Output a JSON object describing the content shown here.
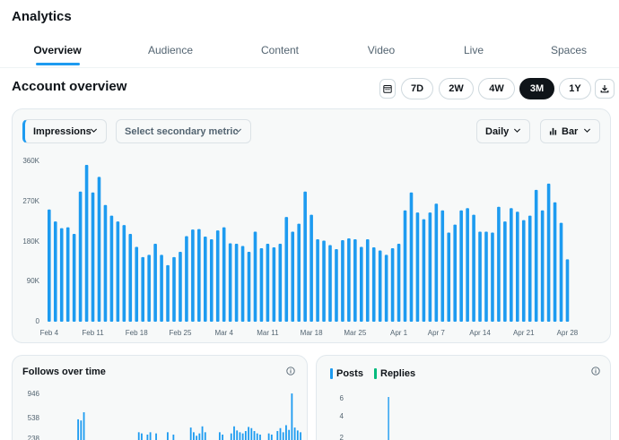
{
  "page": {
    "title": "Analytics"
  },
  "tabs": [
    {
      "label": "Overview",
      "active": true
    },
    {
      "label": "Audience",
      "active": false
    },
    {
      "label": "Content",
      "active": false
    },
    {
      "label": "Video",
      "active": false
    },
    {
      "label": "Live",
      "active": false
    },
    {
      "label": "Spaces",
      "active": false
    }
  ],
  "overview": {
    "title": "Account overview",
    "ranges": [
      "7D",
      "2W",
      "4W",
      "3M",
      "1Y"
    ],
    "selected_range": "3M",
    "calendar_icon": "calendar-icon",
    "download_icon": "download-icon"
  },
  "controls": {
    "primary_metric": "Impressions",
    "secondary_metric_placeholder": "Select secondary metric",
    "interval": "Daily",
    "chart_type_label": "Bar",
    "chart_type_icon": "bar-chart-icon"
  },
  "colors": {
    "accent": "#1d9bf0",
    "replies": "#00ba7c",
    "text": "#0f1419",
    "muted": "#536471"
  },
  "chart_data": [
    {
      "type": "bar",
      "ylim": [
        0,
        360000
      ],
      "yticks": [
        "0",
        "90K",
        "180K",
        "270K",
        "360K"
      ],
      "xticks": [
        "Feb 4",
        "Feb 11",
        "Feb 18",
        "Feb 25",
        "Mar 4",
        "Mar 11",
        "Mar 18",
        "Mar 25",
        "Apr 1",
        "Apr 7",
        "Apr 14",
        "Apr 21",
        "Apr 28"
      ],
      "values": [
        252000,
        225000,
        210000,
        212000,
        197000,
        292000,
        352000,
        290000,
        325000,
        262000,
        238000,
        225000,
        217000,
        197000,
        168000,
        145000,
        150000,
        175000,
        150000,
        127000,
        145000,
        157000,
        192000,
        207000,
        208000,
        191000,
        185000,
        205000,
        212000,
        176000,
        175000,
        170000,
        157000,
        202000,
        165000,
        175000,
        167000,
        175000,
        235000,
        202000,
        220000,
        292000,
        240000,
        185000,
        182000,
        172000,
        163000,
        183000,
        187000,
        185000,
        168000,
        185000,
        167000,
        160000,
        150000,
        165000,
        175000,
        250000,
        290000,
        245000,
        230000,
        245000,
        265000,
        250000,
        200000,
        218000,
        250000,
        255000,
        240000,
        202000,
        202000,
        200000,
        258000,
        225000,
        255000,
        247000,
        228000,
        238000,
        296000,
        250000,
        310000,
        268000,
        222000,
        140000
      ]
    },
    {
      "type": "bar",
      "title": "Follows over time",
      "yticks": [
        "238",
        "538",
        "946"
      ],
      "values": [
        0,
        0,
        0,
        0,
        0,
        0,
        0,
        0,
        0,
        0,
        520,
        500,
        640,
        0,
        0,
        0,
        0,
        0,
        0,
        0,
        0,
        0,
        0,
        0,
        0,
        0,
        0,
        0,
        0,
        0,
        0,
        300,
        280,
        0,
        260,
        300,
        0,
        280,
        0,
        0,
        0,
        300,
        0,
        260,
        0,
        0,
        0,
        0,
        0,
        380,
        300,
        240,
        280,
        400,
        300,
        0,
        0,
        0,
        0,
        300,
        260,
        0,
        0,
        280,
        400,
        330,
        300,
        280,
        320,
        390,
        370,
        320,
        280,
        260,
        0,
        0,
        280,
        260,
        0,
        320,
        370,
        300,
        420,
        340,
        960,
        380,
        330,
        300
      ]
    },
    {
      "type": "bar",
      "series": [
        {
          "name": "Posts",
          "values": [
            0,
            0,
            0,
            0,
            0,
            0,
            0,
            0,
            0,
            0,
            0,
            0,
            6,
            0,
            0,
            0,
            0,
            0,
            0,
            0,
            0,
            0,
            0,
            0,
            0,
            0,
            0,
            0,
            0,
            0,
            0,
            0,
            0,
            0,
            0,
            0,
            0,
            0,
            0,
            0,
            0,
            0,
            0,
            0,
            0,
            0,
            0,
            0,
            0,
            0,
            0,
            0,
            0,
            0,
            0,
            0,
            0,
            0,
            0,
            0,
            0,
            0,
            0,
            0,
            0,
            0,
            0,
            0,
            0,
            0,
            0,
            0,
            0,
            0,
            0,
            0,
            0,
            0,
            0,
            0,
            0,
            0,
            0,
            0
          ]
        },
        {
          "name": "Replies",
          "values": []
        }
      ],
      "yticks": [
        "2",
        "4",
        "6"
      ],
      "ylim": [
        0,
        6.5
      ]
    }
  ]
}
